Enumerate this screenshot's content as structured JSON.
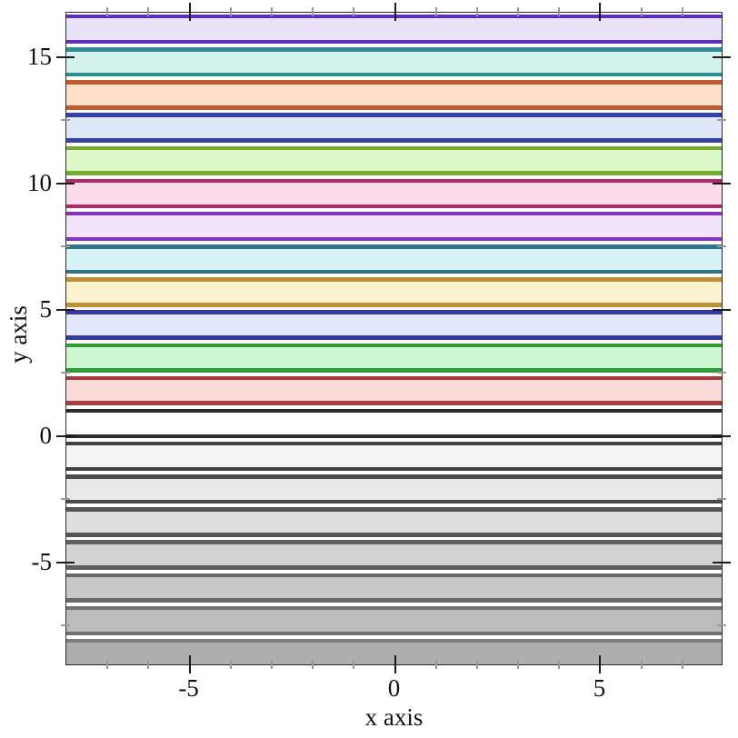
{
  "chart_data": {
    "type": "area",
    "subtype": "horizontal-function-intervals",
    "title": "",
    "xlabel": "x axis",
    "ylabel": "y axis",
    "x_range": [
      -8,
      8
    ],
    "y_range": [
      -9.1,
      16.75
    ],
    "grid": false,
    "legend": "none",
    "frame": "full-box-with-mirrored-ticks",
    "x_major_ticks": [
      {
        "value": -5,
        "label": "-5"
      },
      {
        "value": 0,
        "label": "0"
      },
      {
        "value": 5,
        "label": "5"
      }
    ],
    "x_minor_ticks": [
      -7,
      -6,
      -4,
      -3,
      -2,
      -1,
      1,
      2,
      3,
      4,
      6,
      7
    ],
    "y_major_ticks": [
      {
        "value": 15,
        "label": "15"
      },
      {
        "value": 10,
        "label": "10"
      },
      {
        "value": 5,
        "label": "5"
      },
      {
        "value": 0,
        "label": "0"
      },
      {
        "value": -5,
        "label": "-5"
      }
    ],
    "y_minor_ticks": [
      12.5,
      7.5,
      2.5,
      -2.5,
      -7.5
    ],
    "series_note": "interval bands y in [1.3*i, 1.3*i+1] for i from -7 to 12, full x width; border lines colored by index, translucent light fill",
    "intervals": [
      {
        "i": -7,
        "y1": -9.1,
        "y2": -8.1,
        "line_color": "#7d7d7d",
        "fill_color": "#aeaeae"
      },
      {
        "i": -6,
        "y1": -7.8,
        "y2": -6.8,
        "line_color": "#737373",
        "fill_color": "#bcbcbc"
      },
      {
        "i": -5,
        "y1": -6.5,
        "y2": -5.5,
        "line_color": "#696969",
        "fill_color": "#c8c8c8"
      },
      {
        "i": -4,
        "y1": -5.2,
        "y2": -4.2,
        "line_color": "#5f5f5f",
        "fill_color": "#d3d3d3"
      },
      {
        "i": -3,
        "y1": -3.9,
        "y2": -2.9,
        "line_color": "#555555",
        "fill_color": "#dedede"
      },
      {
        "i": -2,
        "y1": -2.6,
        "y2": -1.6,
        "line_color": "#4b4b4b",
        "fill_color": "#e9e9e9"
      },
      {
        "i": -1,
        "y1": -1.3,
        "y2": -0.3,
        "line_color": "#414141",
        "fill_color": "#f4f4f4"
      },
      {
        "i": 0,
        "y1": 0.0,
        "y2": 1.0,
        "line_color": "#2b2b2b",
        "fill_color": "#ffffff"
      },
      {
        "i": 1,
        "y1": 1.3,
        "y2": 2.3,
        "line_color": "#a43d3d",
        "fill_color": "#fbdada"
      },
      {
        "i": 2,
        "y1": 2.6,
        "y2": 3.6,
        "line_color": "#2f9b3c",
        "fill_color": "#cdf7d1"
      },
      {
        "i": 3,
        "y1": 3.9,
        "y2": 4.9,
        "line_color": "#3838a0",
        "fill_color": "#e3e8fa"
      },
      {
        "i": 4,
        "y1": 5.2,
        "y2": 6.2,
        "line_color": "#c08f33",
        "fill_color": "#fcf2d2"
      },
      {
        "i": 5,
        "y1": 6.5,
        "y2": 7.5,
        "line_color": "#2f7489",
        "fill_color": "#d8f2f8"
      },
      {
        "i": 6,
        "y1": 7.8,
        "y2": 8.8,
        "line_color": "#8a30c8",
        "fill_color": "#f2e4fa"
      },
      {
        "i": 7,
        "y1": 9.1,
        "y2": 10.1,
        "line_color": "#b02a66",
        "fill_color": "#fcdcec"
      },
      {
        "i": 8,
        "y1": 10.4,
        "y2": 11.4,
        "line_color": "#75ac2b",
        "fill_color": "#dcf8c6"
      },
      {
        "i": 9,
        "y1": 11.7,
        "y2": 12.7,
        "line_color": "#3641a8",
        "fill_color": "#dfe7f9"
      },
      {
        "i": 10,
        "y1": 13.0,
        "y2": 14.0,
        "line_color": "#bf5c32",
        "fill_color": "#fce0c8"
      },
      {
        "i": 11,
        "y1": 14.3,
        "y2": 15.3,
        "line_color": "#2e8e94",
        "fill_color": "#d3f3ec"
      },
      {
        "i": 12,
        "y1": 15.6,
        "y2": 16.6,
        "line_color": "#5c30ba",
        "fill_color": "#ebe2f9"
      }
    ],
    "colors": {
      "frame": "#2a2a2a",
      "major_tick": "#1c1c1c",
      "minor_tick": "#9a9a9a",
      "background": "#ffffff",
      "text": "#111111"
    }
  },
  "labels": {
    "x_axis_title": "x axis",
    "y_axis_title": "y axis"
  }
}
